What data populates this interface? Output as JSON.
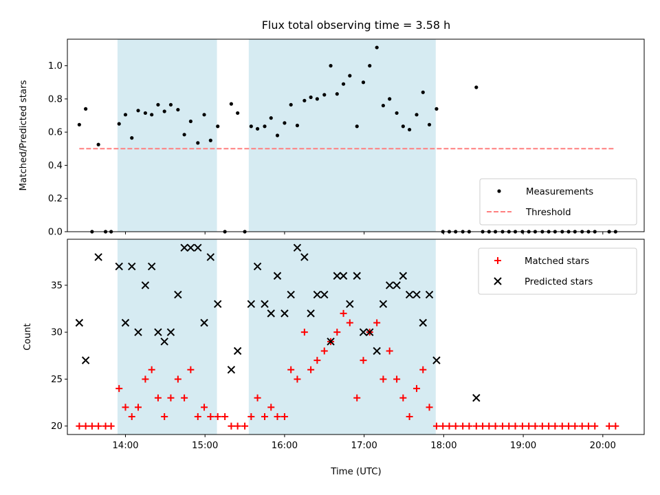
{
  "chart_data": [
    {
      "type": "scatter",
      "title": "Flux total observing time = 3.58 h",
      "xlabel": "",
      "ylabel": "Matched/Predicted stars",
      "xlim": [
        13.27,
        20.52
      ],
      "ylim": [
        0,
        1.16
      ],
      "yticks": [
        0,
        0.2,
        0.4,
        0.6,
        0.8,
        1.0
      ],
      "ytick_labels": [
        "0.0",
        "0.2",
        "0.4",
        "0.6",
        "0.8",
        "1.0"
      ],
      "shaded_intervals": [
        [
          13.9,
          15.15
        ],
        [
          15.55,
          17.9
        ]
      ],
      "shade_color": "#add8e6",
      "legend_position": "lower-right",
      "series": [
        {
          "name": "Measurements",
          "style": "dot",
          "color": "#000000",
          "points": [
            [
              13.42,
              0.645
            ],
            [
              13.5,
              0.74
            ],
            [
              13.58,
              0.0
            ],
            [
              13.66,
              0.525
            ],
            [
              13.75,
              0.0
            ],
            [
              13.82,
              0.0
            ],
            [
              13.92,
              0.65
            ],
            [
              14.0,
              0.705
            ],
            [
              14.08,
              0.565
            ],
            [
              14.16,
              0.73
            ],
            [
              14.25,
              0.715
            ],
            [
              14.33,
              0.705
            ],
            [
              14.41,
              0.765
            ],
            [
              14.49,
              0.725
            ],
            [
              14.57,
              0.765
            ],
            [
              14.66,
              0.735
            ],
            [
              14.74,
              0.585
            ],
            [
              14.82,
              0.665
            ],
            [
              14.91,
              0.535
            ],
            [
              14.99,
              0.705
            ],
            [
              15.07,
              0.55
            ],
            [
              15.16,
              0.635
            ],
            [
              15.25,
              0.0
            ],
            [
              15.33,
              0.77
            ],
            [
              15.41,
              0.715
            ],
            [
              15.5,
              0.0
            ],
            [
              15.58,
              0.635
            ],
            [
              15.66,
              0.62
            ],
            [
              15.75,
              0.635
            ],
            [
              15.83,
              0.685
            ],
            [
              15.91,
              0.58
            ],
            [
              16.0,
              0.655
            ],
            [
              16.08,
              0.765
            ],
            [
              16.16,
              0.64
            ],
            [
              16.25,
              0.79
            ],
            [
              16.33,
              0.81
            ],
            [
              16.41,
              0.8
            ],
            [
              16.5,
              0.825
            ],
            [
              16.58,
              1.0
            ],
            [
              16.66,
              0.83
            ],
            [
              16.74,
              0.89
            ],
            [
              16.82,
              0.94
            ],
            [
              16.91,
              0.635
            ],
            [
              16.99,
              0.9
            ],
            [
              17.07,
              1.0
            ],
            [
              17.16,
              1.11
            ],
            [
              17.24,
              0.76
            ],
            [
              17.32,
              0.8
            ],
            [
              17.41,
              0.715
            ],
            [
              17.49,
              0.635
            ],
            [
              17.57,
              0.615
            ],
            [
              17.66,
              0.705
            ],
            [
              17.74,
              0.84
            ],
            [
              17.82,
              0.645
            ],
            [
              17.91,
              0.74
            ],
            [
              17.99,
              0.0
            ],
            [
              18.07,
              0.0
            ],
            [
              18.15,
              0.0
            ],
            [
              18.24,
              0.0
            ],
            [
              18.32,
              0.0
            ],
            [
              18.41,
              0.87
            ],
            [
              18.49,
              0.0
            ],
            [
              18.57,
              0.0
            ],
            [
              18.65,
              0.0
            ],
            [
              18.74,
              0.0
            ],
            [
              18.82,
              0.0
            ],
            [
              18.9,
              0.0
            ],
            [
              18.99,
              0.0
            ],
            [
              19.07,
              0.0
            ],
            [
              19.15,
              0.0
            ],
            [
              19.24,
              0.0
            ],
            [
              19.32,
              0.0
            ],
            [
              19.4,
              0.0
            ],
            [
              19.49,
              0.0
            ],
            [
              19.57,
              0.0
            ],
            [
              19.65,
              0.0
            ],
            [
              19.74,
              0.0
            ],
            [
              19.82,
              0.0
            ],
            [
              19.9,
              0.0
            ],
            [
              20.08,
              0.0
            ],
            [
              20.16,
              0.0
            ]
          ]
        },
        {
          "name": "Threshold",
          "style": "dashed-line",
          "color": "#ff7f7f",
          "points": [
            [
              13.42,
              0.5
            ],
            [
              20.16,
              0.5
            ]
          ]
        }
      ]
    },
    {
      "type": "scatter",
      "title": "",
      "xlabel": "Time (UTC)",
      "ylabel": "Count",
      "xlim": [
        13.27,
        20.52
      ],
      "ylim": [
        19.1,
        39.9
      ],
      "xticks": [
        14,
        15,
        16,
        17,
        18,
        19,
        20
      ],
      "xtick_labels": [
        "14:00",
        "15:00",
        "16:00",
        "17:00",
        "18:00",
        "19:00",
        "20:00"
      ],
      "yticks": [
        20,
        25,
        30,
        35
      ],
      "ytick_labels": [
        "20",
        "25",
        "30",
        "35"
      ],
      "shaded_intervals": [
        [
          13.9,
          15.15
        ],
        [
          15.55,
          17.9
        ]
      ],
      "shade_color": "#add8e6",
      "legend_position": "top-right",
      "series": [
        {
          "name": "Matched stars",
          "style": "plus",
          "color": "#ff0000",
          "points": [
            [
              13.42,
              20
            ],
            [
              13.5,
              20
            ],
            [
              13.58,
              20
            ],
            [
              13.66,
              20
            ],
            [
              13.75,
              20
            ],
            [
              13.82,
              20
            ],
            [
              13.92,
              24
            ],
            [
              14.0,
              22
            ],
            [
              14.08,
              21
            ],
            [
              14.16,
              22
            ],
            [
              14.25,
              25
            ],
            [
              14.33,
              26
            ],
            [
              14.41,
              23
            ],
            [
              14.49,
              21
            ],
            [
              14.57,
              23
            ],
            [
              14.66,
              25
            ],
            [
              14.74,
              23
            ],
            [
              14.82,
              26
            ],
            [
              14.91,
              21
            ],
            [
              14.99,
              22
            ],
            [
              15.07,
              21
            ],
            [
              15.16,
              21
            ],
            [
              15.25,
              21
            ],
            [
              15.33,
              20
            ],
            [
              15.41,
              20
            ],
            [
              15.5,
              20
            ],
            [
              15.58,
              21
            ],
            [
              15.66,
              23
            ],
            [
              15.75,
              21
            ],
            [
              15.83,
              22
            ],
            [
              15.91,
              21
            ],
            [
              16.0,
              21
            ],
            [
              16.08,
              26
            ],
            [
              16.16,
              25
            ],
            [
              16.25,
              30
            ],
            [
              16.33,
              26
            ],
            [
              16.41,
              27
            ],
            [
              16.5,
              28
            ],
            [
              16.58,
              29
            ],
            [
              16.66,
              30
            ],
            [
              16.74,
              32
            ],
            [
              16.82,
              31
            ],
            [
              16.91,
              23
            ],
            [
              16.99,
              27
            ],
            [
              17.07,
              30
            ],
            [
              17.16,
              31
            ],
            [
              17.24,
              25
            ],
            [
              17.32,
              28
            ],
            [
              17.41,
              25
            ],
            [
              17.49,
              23
            ],
            [
              17.57,
              21
            ],
            [
              17.66,
              24
            ],
            [
              17.74,
              26
            ],
            [
              17.82,
              22
            ],
            [
              17.91,
              20
            ],
            [
              17.99,
              20
            ],
            [
              18.07,
              20
            ],
            [
              18.15,
              20
            ],
            [
              18.24,
              20
            ],
            [
              18.32,
              20
            ],
            [
              18.41,
              20
            ],
            [
              18.49,
              20
            ],
            [
              18.57,
              20
            ],
            [
              18.65,
              20
            ],
            [
              18.74,
              20
            ],
            [
              18.82,
              20
            ],
            [
              18.9,
              20
            ],
            [
              18.99,
              20
            ],
            [
              19.07,
              20
            ],
            [
              19.15,
              20
            ],
            [
              19.24,
              20
            ],
            [
              19.32,
              20
            ],
            [
              19.4,
              20
            ],
            [
              19.49,
              20
            ],
            [
              19.57,
              20
            ],
            [
              19.65,
              20
            ],
            [
              19.74,
              20
            ],
            [
              19.82,
              20
            ],
            [
              19.9,
              20
            ],
            [
              20.08,
              20
            ],
            [
              20.16,
              20
            ]
          ]
        },
        {
          "name": "Predicted stars",
          "style": "cross",
          "color": "#000000",
          "points": [
            [
              13.42,
              31
            ],
            [
              13.5,
              27
            ],
            [
              13.66,
              38
            ],
            [
              13.92,
              37
            ],
            [
              14.0,
              31
            ],
            [
              14.08,
              37
            ],
            [
              14.16,
              30
            ],
            [
              14.25,
              35
            ],
            [
              14.33,
              37
            ],
            [
              14.41,
              30
            ],
            [
              14.49,
              29
            ],
            [
              14.57,
              30
            ],
            [
              14.66,
              34
            ],
            [
              14.74,
              39
            ],
            [
              14.82,
              39
            ],
            [
              14.91,
              39
            ],
            [
              14.99,
              31
            ],
            [
              15.07,
              38
            ],
            [
              15.16,
              33
            ],
            [
              15.33,
              26
            ],
            [
              15.41,
              28
            ],
            [
              15.58,
              33
            ],
            [
              15.66,
              37
            ],
            [
              15.75,
              33
            ],
            [
              15.83,
              32
            ],
            [
              15.91,
              36
            ],
            [
              16.0,
              32
            ],
            [
              16.08,
              34
            ],
            [
              16.16,
              39
            ],
            [
              16.25,
              38
            ],
            [
              16.33,
              32
            ],
            [
              16.41,
              34
            ],
            [
              16.5,
              34
            ],
            [
              16.58,
              29
            ],
            [
              16.66,
              36
            ],
            [
              16.74,
              36
            ],
            [
              16.82,
              33
            ],
            [
              16.91,
              36
            ],
            [
              16.99,
              30
            ],
            [
              17.07,
              30
            ],
            [
              17.16,
              28
            ],
            [
              17.24,
              33
            ],
            [
              17.32,
              35
            ],
            [
              17.41,
              35
            ],
            [
              17.49,
              36
            ],
            [
              17.57,
              34
            ],
            [
              17.66,
              34
            ],
            [
              17.74,
              31
            ],
            [
              17.82,
              34
            ],
            [
              17.91,
              27
            ],
            [
              18.41,
              23
            ]
          ]
        }
      ]
    }
  ]
}
